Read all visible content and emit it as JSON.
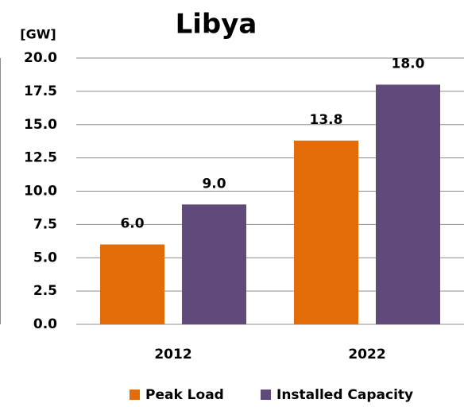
{
  "chart_data": {
    "type": "bar",
    "title": "Libya",
    "y_label": "[GW]",
    "categories": [
      "2012",
      "2022"
    ],
    "series": [
      {
        "name": "Peak Load",
        "color": "#e36c09",
        "values": [
          6.0,
          13.8
        ],
        "value_labels": [
          "6.0",
          "13.8"
        ]
      },
      {
        "name": "Installed Capacity",
        "color": "#604a7b",
        "values": [
          9.0,
          18.0
        ],
        "value_labels": [
          "9.0",
          "18.0"
        ]
      }
    ],
    "ylim": [
      0,
      20
    ],
    "yticks": [
      {
        "value": 0,
        "label": "0.0"
      },
      {
        "value": 2.5,
        "label": "2.5"
      },
      {
        "value": 5,
        "label": "5.0"
      },
      {
        "value": 7.5,
        "label": "7.5"
      },
      {
        "value": 10,
        "label": "10.0"
      },
      {
        "value": 12.5,
        "label": "12.5"
      },
      {
        "value": 15,
        "label": "15.0"
      },
      {
        "value": 17.5,
        "label": "17.5"
      },
      {
        "value": 20,
        "label": "20.0"
      }
    ],
    "grid": true,
    "legend": "bottom"
  }
}
